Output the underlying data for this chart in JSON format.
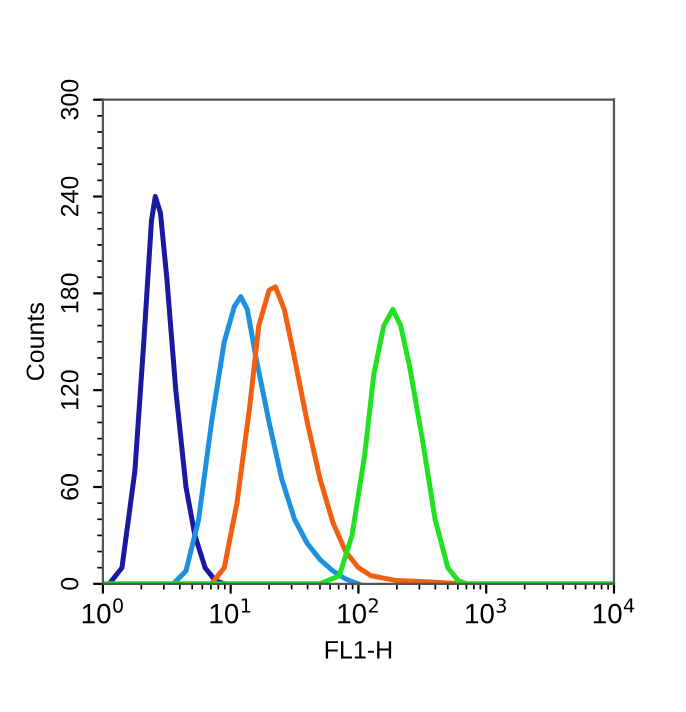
{
  "chart_data": {
    "type": "line",
    "xlabel": "FL1-H",
    "ylabel": "Counts",
    "log": "x",
    "xlim": [
      1,
      10000
    ],
    "xticks": [
      {
        "value": 1,
        "label": "10$^{0}$"
      },
      {
        "value": 10,
        "label": "10$^{1}$"
      },
      {
        "value": 100,
        "label": "10$^{2}$"
      },
      {
        "value": 1000,
        "label": "10$^{3}$"
      },
      {
        "value": 10000,
        "label": "10$^{4}$"
      }
    ],
    "ylim": [
      0,
      300
    ],
    "yticks": [
      0,
      60,
      120,
      180,
      240,
      300
    ],
    "grid": false,
    "legend": false,
    "marker": "none",
    "line_style": "solid",
    "series": [
      {
        "color": "#1a1aa0",
        "x": [
          1.12,
          1.41,
          1.78,
          2.09,
          2.4,
          2.57,
          2.82,
          3.16,
          3.72,
          4.47,
          5.25,
          6.31,
          7.59,
          8.91
        ],
        "values": [
          0,
          10,
          70,
          150,
          225,
          240,
          230,
          190,
          120,
          60,
          30,
          10,
          2,
          0
        ]
      },
      {
        "color": "#1e90e0",
        "x": [
          3.55,
          4.47,
          5.62,
          7.08,
          8.91,
          10.7,
          12.0,
          13.5,
          15.8,
          20.0,
          25.1,
          31.6,
          39.8,
          50.1,
          63.1,
          79.4,
          100
        ],
        "values": [
          0,
          8,
          40,
          100,
          150,
          172,
          178,
          170,
          140,
          100,
          65,
          40,
          25,
          15,
          8,
          3,
          0
        ]
      },
      {
        "color": "#f06010",
        "x": [
          7.08,
          8.91,
          11.2,
          14.1,
          16.6,
          20.0,
          22.4,
          26.3,
          31.6,
          39.8,
          50.1,
          63.1,
          79.4,
          100,
          126,
          200,
          398,
          631
        ],
        "values": [
          0,
          10,
          50,
          110,
          160,
          182,
          184,
          170,
          140,
          100,
          65,
          38,
          20,
          10,
          5,
          2,
          1,
          0
        ]
      },
      {
        "color": "#22e022",
        "x": [
          1,
          50.1,
          70.8,
          89.1,
          112,
          132,
          158,
          186,
          214,
          251,
          316,
          398,
          501,
          603,
          708,
          10000
        ],
        "values": [
          0,
          0,
          5,
          30,
          80,
          130,
          160,
          170,
          160,
          135,
          90,
          40,
          10,
          2,
          0,
          0
        ]
      }
    ]
  }
}
